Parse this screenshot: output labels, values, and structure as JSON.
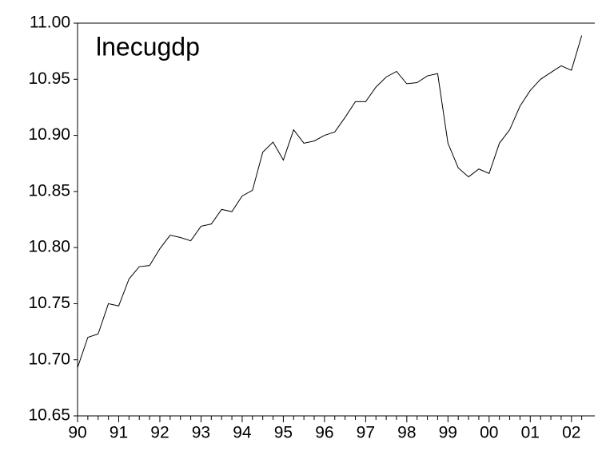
{
  "chart_data": {
    "type": "line",
    "title": "lnecugdp",
    "categories": [
      "90",
      null,
      null,
      null,
      "91",
      null,
      null,
      null,
      "92",
      null,
      null,
      null,
      "93",
      null,
      null,
      null,
      "94",
      null,
      null,
      null,
      "95",
      null,
      null,
      null,
      "96",
      null,
      null,
      null,
      "97",
      null,
      null,
      null,
      "98",
      null,
      null,
      null,
      "99",
      null,
      null,
      null,
      "00",
      null,
      null,
      null,
      "01",
      null,
      null,
      null,
      "02",
      null
    ],
    "values": [
      10.693,
      10.72,
      10.723,
      10.75,
      10.748,
      10.772,
      10.783,
      10.784,
      10.799,
      10.811,
      10.809,
      10.806,
      10.819,
      10.821,
      10.834,
      10.832,
      10.846,
      10.851,
      10.885,
      10.894,
      10.878,
      10.905,
      10.893,
      10.895,
      10.9,
      10.903,
      10.916,
      10.93,
      10.93,
      10.943,
      10.952,
      10.957,
      10.946,
      10.947,
      10.953,
      10.955,
      10.893,
      10.871,
      10.863,
      10.87,
      10.866,
      10.893,
      10.905,
      10.926,
      10.94,
      10.95,
      10.956,
      10.962,
      10.958,
      10.989
    ],
    "color": "#000000",
    "ylim": [
      10.65,
      11.0
    ],
    "yticks": [
      10.65,
      {
        "value": 10.7,
        "label": "10.70"
      },
      10.75,
      {
        "value": 10.8,
        "label": "10.80"
      },
      10.85,
      {
        "value": 10.9,
        "label": "10.90"
      },
      10.95,
      {
        "value": 11.0,
        "label": "11.00"
      }
    ],
    "grid": false
  }
}
